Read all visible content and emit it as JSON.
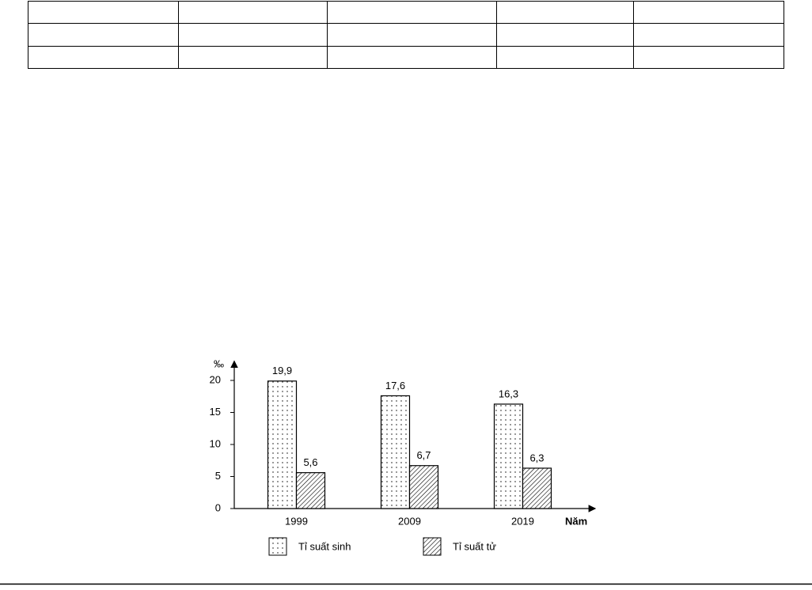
{
  "chart_data": {
    "type": "bar",
    "y_label": "‰",
    "x_label": "Năm",
    "categories": [
      "1999",
      "2009",
      "2019"
    ],
    "series": [
      {
        "name": "Tỉ suất sinh",
        "color": "#000000",
        "pattern": "dots",
        "values": [
          19.9,
          17.6,
          16.3
        ],
        "value_labels": [
          "19,9",
          "17,6",
          "16,3"
        ]
      },
      {
        "name": "Tỉ suất tử",
        "color": "#000000",
        "pattern": "hatch",
        "values": [
          5.6,
          6.7,
          6.3
        ],
        "value_labels": [
          "5,6",
          "6,7",
          "6,3"
        ]
      }
    ],
    "ylim": [
      0,
      23
    ],
    "yticks": [
      0,
      5,
      10,
      15,
      20
    ]
  }
}
